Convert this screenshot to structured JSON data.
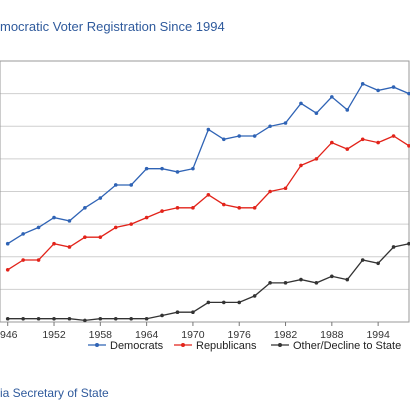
{
  "title": "mocratic Voter Registration Since 1994",
  "source": "ia Secretary of State",
  "colors": {
    "democrats": "#2f63b5",
    "republicans": "#e2231a",
    "other": "#333333",
    "grid": "#cfcfcf",
    "frame": "#9a9a9a"
  },
  "chart_data": {
    "type": "line",
    "title": "mocratic Voter Registration Since 1994",
    "x_ticks": [
      "946",
      "1952",
      "1958",
      "1964",
      "1970",
      "1976",
      "1982",
      "1988",
      "1994"
    ],
    "x": [
      1946,
      1948,
      1950,
      1952,
      1954,
      1956,
      1958,
      1960,
      1962,
      1964,
      1966,
      1968,
      1970,
      1972,
      1974,
      1976,
      1978,
      1980,
      1982,
      1984,
      1986,
      1988,
      1990,
      1992,
      1994,
      1996,
      1998
    ],
    "xlim": [
      1945,
      1998
    ],
    "ylim": [
      0,
      8
    ],
    "grid": true,
    "legend_position": "bottom",
    "series": [
      {
        "name": "Democrats",
        "color": "#2f63b5",
        "values": [
          2.4,
          2.7,
          2.9,
          3.2,
          3.1,
          3.5,
          3.8,
          4.2,
          4.2,
          4.7,
          4.7,
          4.6,
          4.7,
          5.9,
          5.6,
          5.7,
          5.7,
          6.0,
          6.1,
          6.7,
          6.4,
          6.9,
          6.5,
          7.3,
          7.1,
          7.2,
          7.0
        ]
      },
      {
        "name": "Republicans",
        "color": "#e2231a",
        "values": [
          1.6,
          1.9,
          1.9,
          2.4,
          2.3,
          2.6,
          2.6,
          2.9,
          3.0,
          3.2,
          3.4,
          3.5,
          3.5,
          3.9,
          3.6,
          3.5,
          3.5,
          4.0,
          4.1,
          4.8,
          5.0,
          5.5,
          5.3,
          5.6,
          5.5,
          5.7,
          5.4
        ]
      },
      {
        "name": "Other/Decline to State",
        "color": "#333333",
        "values": [
          0.1,
          0.1,
          0.1,
          0.1,
          0.1,
          0.05,
          0.1,
          0.1,
          0.1,
          0.1,
          0.2,
          0.3,
          0.3,
          0.6,
          0.6,
          0.6,
          0.8,
          1.2,
          1.2,
          1.3,
          1.2,
          1.4,
          1.3,
          1.9,
          1.8,
          2.3,
          2.4
        ]
      }
    ]
  }
}
